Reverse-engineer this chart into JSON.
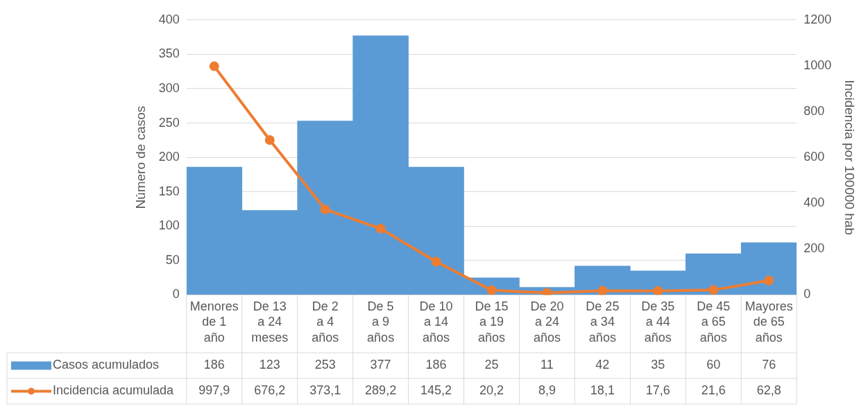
{
  "chart_data": {
    "type": "bar",
    "categories": [
      "Menores de 1 año",
      "De 13 a 24 meses",
      "De 2 a 4 años",
      "De 5 a 9 años",
      "De 10 a 14 años",
      "De 15 a 19 años",
      "De 20 a 24 años",
      "De 25 a 34 años",
      "De 35 a 44 años",
      "De 45 a 65 años",
      "Mayores de 65 años"
    ],
    "series": [
      {
        "name": "Casos acumulados",
        "color": "#5b9bd5",
        "values": [
          186,
          123,
          253,
          377,
          186,
          25,
          11,
          42,
          35,
          60,
          76
        ],
        "value_labels": [
          "186",
          "123",
          "253",
          "377",
          "186",
          "25",
          "11",
          "42",
          "35",
          "60",
          "76"
        ]
      },
      {
        "name": "Incidencia acumulada",
        "type": "line",
        "axis": "y2",
        "color": "#ed7d31",
        "values": [
          997.9,
          676.2,
          373.1,
          289.2,
          145.2,
          20.2,
          8.9,
          18.1,
          17.6,
          21.6,
          62.8
        ],
        "value_labels": [
          "997,9",
          "676,2",
          "373,1",
          "289,2",
          "145,2",
          "20,2",
          "8,9",
          "18,1",
          "17,6",
          "21,6",
          "62,8"
        ]
      }
    ],
    "ylabel": "Número de casos",
    "y2label": "Incidencia por 100000 hab",
    "ylim": [
      0,
      400
    ],
    "yticks": [
      0,
      50,
      100,
      150,
      200,
      250,
      300,
      350,
      400
    ],
    "y2lim": [
      0,
      1200
    ],
    "y2ticks": [
      0,
      200,
      400,
      600,
      800,
      1000,
      1200
    ],
    "grid": "y",
    "legend": "bottom",
    "marker": "circle",
    "line_style": "solid"
  }
}
